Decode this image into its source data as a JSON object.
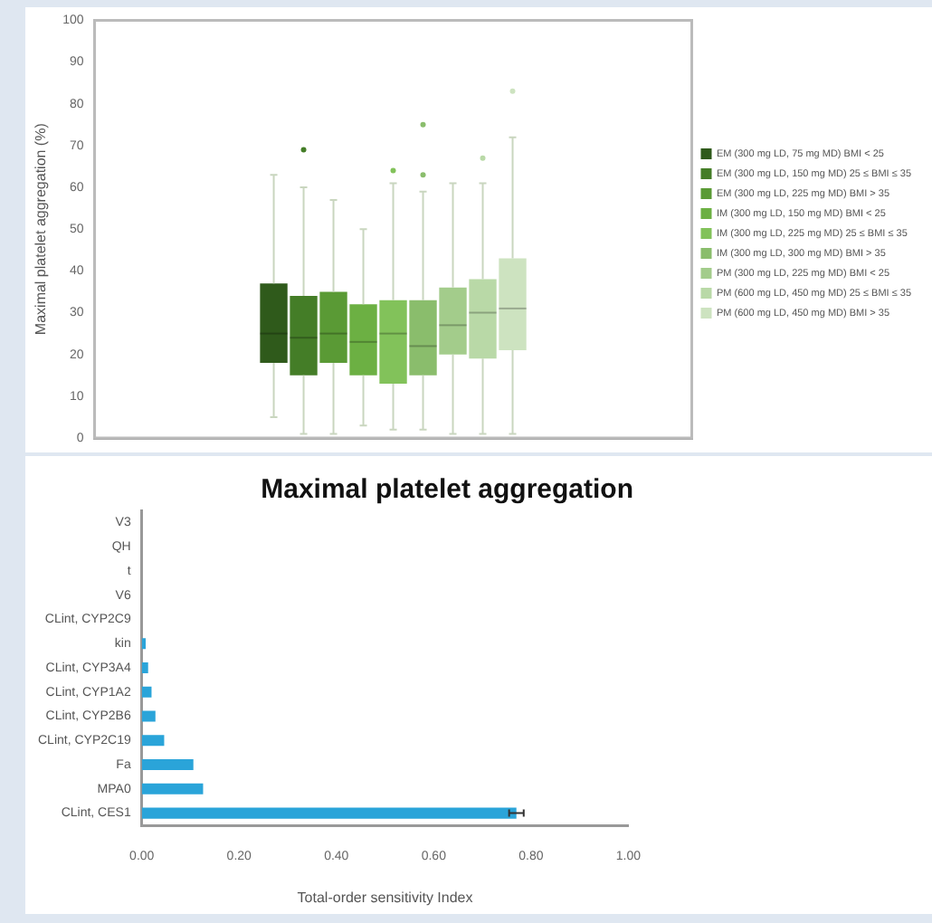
{
  "chart_data": [
    {
      "type": "box",
      "ylabel": "Maximal platelet aggregation (%)",
      "ylim": [
        0,
        100
      ],
      "yticks": [
        0,
        10,
        20,
        30,
        40,
        50,
        60,
        70,
        80,
        90,
        100
      ],
      "categories": [
        null
      ],
      "legend": "right",
      "tick_labels": "y",
      "grid": false,
      "series": [
        {
          "name": "EM (300 mg LD, 75 mg MD) BMI < 25",
          "color": "#2f5a1b",
          "boxes": [
            {
              "low": 5,
              "q1": 18,
              "median": 25,
              "q3": 37,
              "high": 63
            }
          ]
        },
        {
          "name": "EM (300 mg LD, 150 mg MD) 25 ≤ BMI ≤ 35",
          "color": "#447d27",
          "boxes": [
            {
              "low": 1,
              "q1": 15,
              "median": 24,
              "q3": 34,
              "high": 60,
              "outliers": [
                69
              ]
            }
          ]
        },
        {
          "name": "EM (300 mg LD, 225 mg MD) BMI > 35",
          "color": "#5a9a35",
          "boxes": [
            {
              "low": 1,
              "q1": 18,
              "median": 25,
              "q3": 35,
              "high": 57
            }
          ]
        },
        {
          "name": "IM (300 mg LD, 150 mg MD) BMI < 25",
          "color": "#6cb043",
          "boxes": [
            {
              "low": 3,
              "q1": 15,
              "median": 23,
              "q3": 32,
              "high": 50
            }
          ]
        },
        {
          "name": "IM (300 mg LD, 225 mg MD) 25 ≤ BMI ≤ 35",
          "color": "#82c25a",
          "boxes": [
            {
              "low": 2,
              "q1": 13,
              "median": 25,
              "q3": 33,
              "high": 61,
              "outliers": [
                64
              ]
            }
          ]
        },
        {
          "name": "IM (300 mg LD, 300 mg MD) BMI > 35",
          "color": "#8abd6c",
          "boxes": [
            {
              "low": 2,
              "q1": 15,
              "median": 22,
              "q3": 33,
              "high": 59,
              "outliers": [
                63,
                75
              ]
            }
          ]
        },
        {
          "name": "PM (300 mg LD, 225 mg MD) BMI < 25",
          "color": "#a3cc8b",
          "boxes": [
            {
              "low": 1,
              "q1": 20,
              "median": 27,
              "q3": 36,
              "high": 61
            }
          ]
        },
        {
          "name": "PM (600 mg LD, 450 mg MD) 25 ≤ BMI ≤ 35",
          "color": "#b9d9a7",
          "boxes": [
            {
              "low": 1,
              "q1": 19,
              "median": 30,
              "q3": 38,
              "high": 61,
              "outliers": [
                67
              ]
            }
          ]
        },
        {
          "name": "PM (600 mg LD, 450 mg MD) BMI > 35",
          "color": "#cde3c0",
          "boxes": [
            {
              "low": 1,
              "q1": 21,
              "median": 31,
              "q3": 43,
              "high": 72,
              "outliers": [
                83
              ]
            }
          ]
        }
      ]
    },
    {
      "type": "bar",
      "orientation": "horizontal",
      "title": "Maximal platelet aggregation",
      "xlabel": "Total-order sensitivity Index",
      "color": "#2aa4d9",
      "categories": [
        "V3",
        "QH",
        "t",
        "V6",
        "CLint, CYP2C9",
        "kin",
        "CLint, CYP3A4",
        "CLint, CYP1A2",
        "CLint, CYP2B6",
        "CLint, CYP2C19",
        "Fa",
        "MPA0",
        "CLint, CES1"
      ],
      "values": [
        0,
        0,
        0,
        0,
        0,
        0.008,
        0.013,
        0.02,
        0.028,
        0.046,
        0.106,
        0.126,
        0.77
      ],
      "errors": [
        null,
        null,
        null,
        null,
        null,
        null,
        null,
        null,
        null,
        null,
        null,
        null,
        0.015
      ],
      "xlim": [
        0,
        1
      ],
      "xticks": [
        {
          "value": 0,
          "label": "0.00"
        },
        {
          "value": 0.2,
          "label": "0.20"
        },
        {
          "value": 0.4,
          "label": "0.40"
        },
        {
          "value": 0.6,
          "label": "0.60"
        },
        {
          "value": 0.8,
          "label": "0.80"
        },
        {
          "value": 1,
          "label": "1.00"
        }
      ],
      "grid": false
    }
  ]
}
